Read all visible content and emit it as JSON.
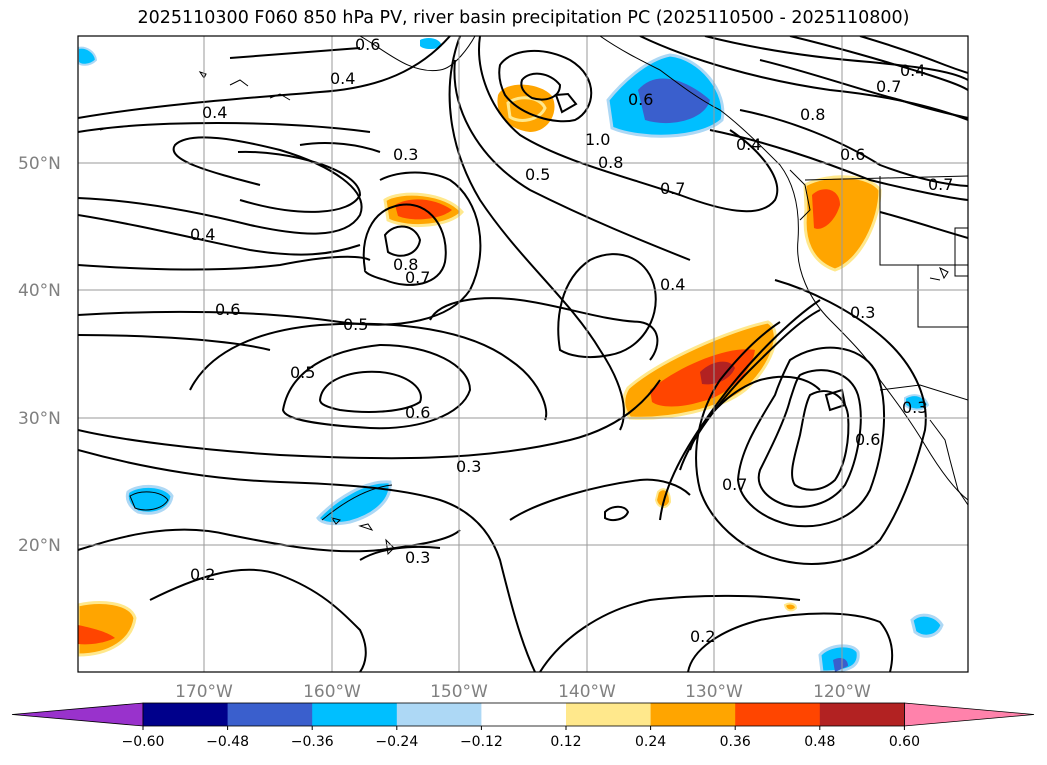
{
  "title": "2025110300 F060 850 hPa PV, river basin precipitation PC (2025110500 - 2025110800)",
  "lat_labels": [
    "50°N",
    "40°N",
    "30°N",
    "20°N"
  ],
  "lon_labels": [
    "170°W",
    "160°W",
    "150°W",
    "140°W",
    "130°W",
    "120°W"
  ],
  "contour_labels": [
    "0.4",
    "0.6",
    "0.4",
    "0.3",
    "0.4",
    "0.8",
    "0.7",
    "0.6",
    "0.5",
    "0.5",
    "0.6",
    "0.3",
    "0.3",
    "0.2",
    "0.2",
    "1.0",
    "0.8",
    "0.5",
    "0.7",
    "0.6",
    "0.4",
    "0.8",
    "0.6",
    "0.7",
    "0.3",
    "0.4",
    "0.7",
    "0.6",
    "0.3",
    "0.7",
    "0.4"
  ],
  "colorbar": {
    "ticks": [
      "−0.60",
      "−0.48",
      "−0.36",
      "−0.24",
      "−0.12",
      "0.12",
      "0.24",
      "0.36",
      "0.48",
      "0.60"
    ],
    "colors": [
      "#9932cc",
      "#00008b",
      "#3a5fcd",
      "#00bfff",
      "#add8f5",
      "#ffffff",
      "#ffe88c",
      "#ffa500",
      "#ff4500",
      "#b22222",
      "#ff82ab"
    ]
  }
}
